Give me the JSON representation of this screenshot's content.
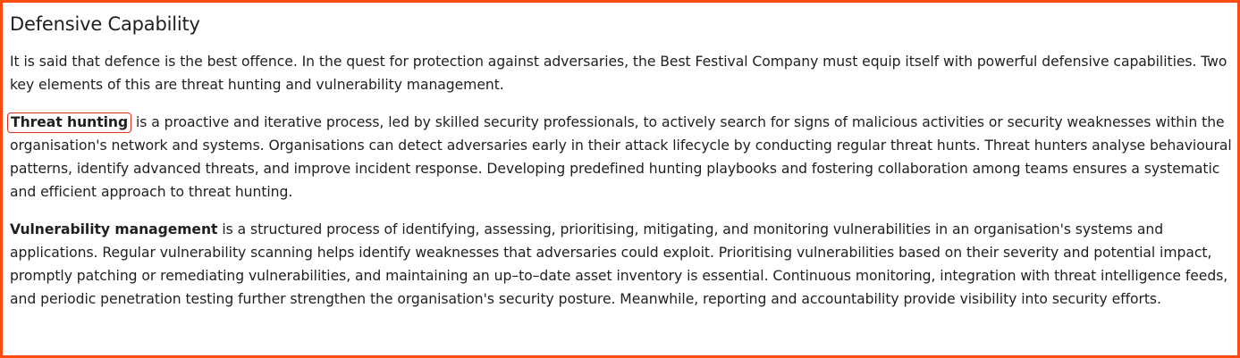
{
  "section": {
    "title": "Defensive Capability",
    "intro": "It is said that defence is the best offence. In the quest for protection against adversaries, the Best Festival Company must equip itself with powerful defensive capabilities. Two key elements of this are threat hunting and vulnerability management.",
    "threat_hunting": {
      "term": "Threat hunting",
      "body": " is a proactive and iterative process, led by skilled security professionals, to actively search for signs of malicious activities or security weaknesses within the organisation's network and systems. Organisations can detect adversaries early in their attack lifecycle by conducting regular threat hunts. Threat hunters analyse behavioural patterns, identify advanced threats, and improve incident response. Developing predefined hunting playbooks and fostering collaboration among teams ensures a systematic and efficient approach to threat hunting."
    },
    "vulnerability_management": {
      "term": "Vulnerability management",
      "body": " is a structured process of identifying, assessing, prioritising, mitigating, and monitoring vulnerabilities in an organisation's systems and applications. Regular vulnerability scanning helps identify weaknesses that adversaries could exploit. Prioritising vulnerabilities based on their severity and potential impact, promptly patching or remediating vulnerabilities, and maintaining an up–to–date asset inventory is essential. Continuous monitoring, integration with threat intelligence feeds, and periodic penetration testing further strengthen the organisation's security posture. Meanwhile, reporting and accountability provide visibility into security efforts."
    }
  },
  "colors": {
    "frame_border": "#ff4a12",
    "highlight_box": "#e02b1c",
    "text": "#1f1f1f"
  }
}
